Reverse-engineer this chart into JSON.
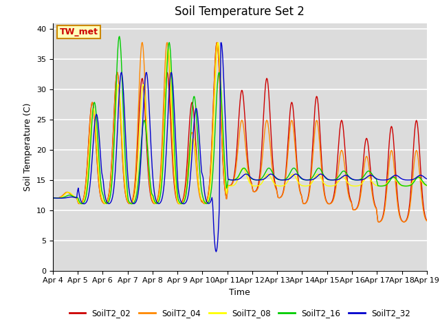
{
  "title": "Soil Temperature Set 2",
  "xlabel": "Time",
  "ylabel": "Soil Temperature (C)",
  "ylim": [
    0,
    41
  ],
  "yticks": [
    0,
    5,
    10,
    15,
    20,
    25,
    30,
    35,
    40
  ],
  "annotation": "TW_met",
  "bg_color": "#dcdcdc",
  "series_colors": {
    "SoilT2_02": "#cc0000",
    "SoilT2_04": "#ff8800",
    "SoilT2_08": "#ffff00",
    "SoilT2_16": "#00cc00",
    "SoilT2_32": "#0000cc"
  },
  "x_tick_labels": [
    "Apr 4",
    "Apr 5",
    "Apr 6",
    "Apr 7",
    "Apr 8",
    "Apr 9",
    "Apr 10",
    "Apr 11",
    "Apr 12",
    "Apr 13",
    "Apr 14",
    "Apr 15",
    "Apr 16",
    "Apr 17",
    "Apr 18",
    "Apr 19"
  ]
}
